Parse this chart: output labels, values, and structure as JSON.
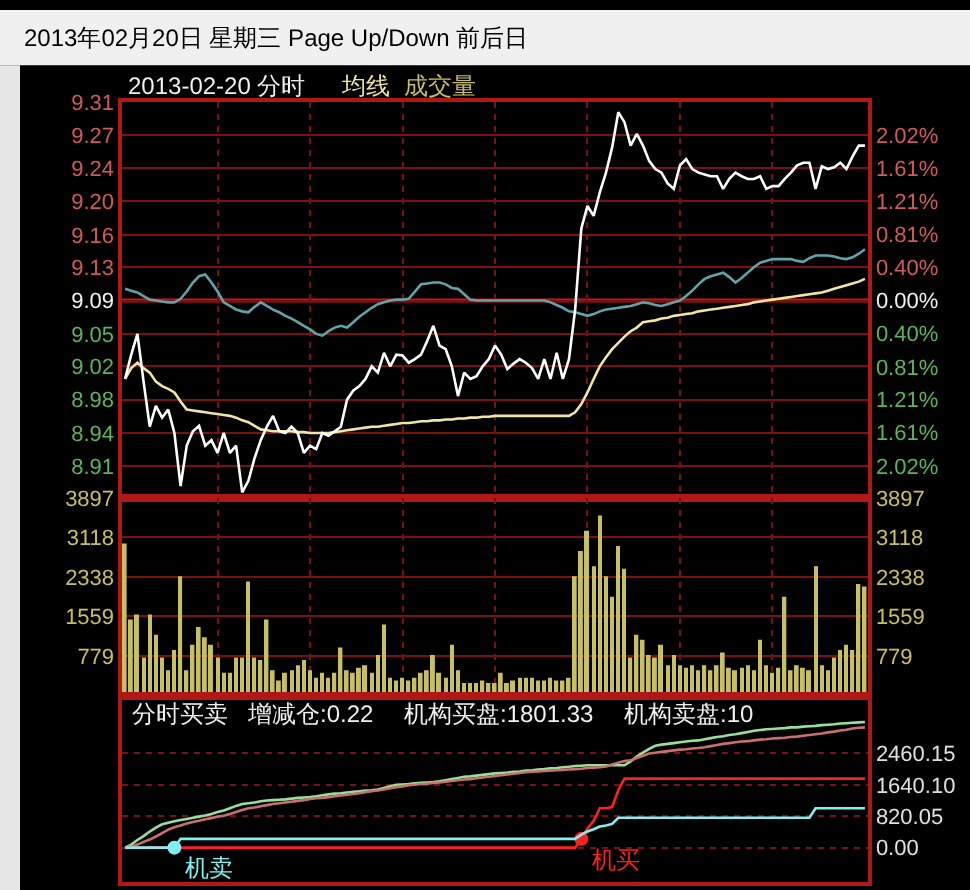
{
  "chart_data": [
    {
      "type": "line",
      "title": "2013年02月20日 星期三 Page Up/Down 前后日",
      "subtitle": "2013-02-20 分时",
      "categories": [
        null,
        null,
        null,
        null,
        null,
        null,
        null,
        null,
        null,
        null,
        null,
        null,
        null,
        null,
        null,
        null,
        null,
        null,
        null,
        null,
        null,
        null,
        null,
        null,
        null,
        null,
        null,
        null,
        null,
        null,
        null,
        null,
        null,
        null,
        null,
        null,
        null,
        null,
        null,
        null,
        null,
        null,
        null,
        null,
        null,
        null,
        null,
        null,
        null,
        null,
        null,
        null,
        null,
        null,
        null,
        null,
        null,
        null,
        null,
        null,
        null,
        null,
        null,
        null,
        null,
        null,
        null,
        null,
        null,
        null,
        null,
        null,
        null,
        null,
        null,
        null,
        null,
        null,
        null,
        null,
        null,
        null,
        null,
        null,
        null,
        null,
        null,
        null,
        null,
        null,
        null,
        null,
        null,
        null,
        null,
        null,
        null,
        null,
        null,
        null,
        null,
        null,
        null,
        null,
        null,
        null,
        null,
        null,
        null,
        null,
        null,
        null,
        null,
        null,
        null,
        null,
        null,
        null,
        null,
        null,
        null
      ],
      "series": [
        {
          "color": "#5fa3ab",
          "values": [
            9.103,
            9.101,
            9.099,
            9.095,
            9.091,
            9.09,
            9.089,
            9.088,
            9.088,
            9.092,
            9.1,
            9.11,
            9.117,
            9.119,
            9.11,
            9.1,
            9.088,
            9.084,
            9.08,
            9.078,
            9.077,
            9.083,
            9.088,
            9.084,
            9.08,
            9.077,
            9.073,
            9.07,
            9.066,
            9.062,
            9.058,
            9.053,
            9.051,
            9.056,
            9.06,
            9.062,
            9.06,
            9.066,
            9.072,
            9.077,
            9.082,
            9.086,
            9.088,
            9.09,
            9.091,
            9.091,
            9.092,
            9.1,
            9.108,
            9.109,
            9.11,
            9.11,
            9.108,
            9.104,
            9.103,
            9.097,
            9.091,
            9.09,
            9.09,
            9.09,
            9.09,
            9.09,
            9.09,
            9.09,
            9.09,
            9.09,
            9.09,
            9.09,
            9.09,
            9.088,
            9.085,
            9.082,
            9.078,
            9.077,
            9.075,
            9.073,
            9.075,
            9.078,
            9.08,
            9.081,
            9.082,
            9.083,
            9.084,
            9.086,
            9.088,
            9.087,
            9.085,
            9.084,
            9.086,
            9.088,
            9.09,
            9.095,
            9.101,
            9.108,
            9.114,
            9.117,
            9.119,
            9.121,
            9.116,
            9.11,
            9.115,
            9.121,
            9.127,
            9.132,
            9.134,
            9.136,
            9.136,
            9.136,
            9.136,
            9.134,
            9.133,
            9.137,
            9.14,
            9.14,
            9.14,
            9.139,
            9.137,
            9.136,
            9.138,
            9.142,
            9.147
          ]
        },
        {
          "name": "均线",
          "color": "#f0e6a0",
          "values": [
            9.003,
            9.015,
            9.021,
            9.015,
            9.01,
            9.0,
            8.995,
            8.992,
            8.988,
            8.978,
            8.969,
            8.968,
            8.967,
            8.966,
            8.965,
            8.964,
            8.963,
            8.962,
            8.96,
            8.957,
            8.955,
            8.951,
            8.947,
            8.946,
            8.945,
            8.945,
            8.945,
            8.945,
            8.944,
            8.944,
            8.943,
            8.943,
            8.943,
            8.943,
            8.944,
            8.945,
            8.946,
            8.947,
            8.948,
            8.949,
            8.95,
            8.95,
            8.951,
            8.952,
            8.953,
            8.954,
            8.954,
            8.955,
            8.956,
            8.956,
            8.957,
            8.957,
            8.958,
            8.958,
            8.959,
            8.959,
            8.96,
            8.96,
            8.961,
            8.961,
            8.962,
            8.962,
            8.962,
            8.962,
            8.962,
            8.962,
            8.962,
            8.962,
            8.962,
            8.962,
            8.962,
            8.962,
            8.962,
            8.966,
            8.975,
            8.988,
            9.003,
            9.017,
            9.027,
            9.036,
            9.043,
            9.05,
            9.056,
            9.06,
            9.066,
            9.067,
            9.068,
            9.07,
            9.071,
            9.073,
            9.074,
            9.075,
            9.076,
            9.078,
            9.079,
            9.08,
            9.081,
            9.082,
            9.083,
            9.084,
            9.085,
            9.086,
            9.088,
            9.089,
            9.09,
            9.091,
            9.092,
            9.093,
            9.094,
            9.095,
            9.096,
            9.097,
            9.098,
            9.099,
            9.101,
            9.103,
            9.105,
            9.107,
            9.109,
            9.111,
            9.114
          ]
        },
        {
          "color": "#ffffff",
          "values": [
            9.003,
            9.03,
            9.053,
            9.0,
            8.95,
            8.973,
            8.96,
            8.969,
            8.943,
            8.884,
            8.929,
            8.945,
            8.951,
            8.929,
            8.935,
            8.921,
            8.943,
            8.921,
            8.929,
            8.877,
            8.89,
            8.915,
            8.935,
            8.95,
            8.962,
            8.945,
            8.943,
            8.95,
            8.943,
            8.921,
            8.929,
            8.925,
            8.943,
            8.94,
            8.945,
            8.95,
            8.98,
            8.99,
            8.995,
            9.003,
            9.017,
            9.01,
            9.032,
            9.017,
            9.03,
            9.029,
            9.021,
            9.025,
            9.03,
            9.045,
            9.062,
            9.04,
            9.036,
            9.017,
            8.984,
            9.01,
            9.003,
            9.006,
            9.017,
            9.025,
            9.04,
            9.03,
            9.014,
            9.02,
            9.025,
            9.021,
            9.015,
            9.003,
            9.025,
            9.003,
            9.032,
            9.003,
            9.025,
            9.08,
            9.17,
            9.195,
            9.184,
            9.21,
            9.232,
            9.26,
            9.299,
            9.288,
            9.262,
            9.275,
            9.262,
            9.245,
            9.236,
            9.232,
            9.22,
            9.214,
            9.24,
            9.247,
            9.236,
            9.232,
            9.23,
            9.228,
            9.228,
            9.214,
            9.225,
            9.232,
            9.228,
            9.225,
            9.225,
            9.228,
            9.214,
            9.217,
            9.217,
            9.225,
            9.232,
            9.24,
            9.243,
            9.243,
            9.214,
            9.239,
            9.236,
            9.238,
            9.243,
            9.236,
            9.25,
            9.262,
            9.262
          ]
        }
      ],
      "ylim": [
        8.871,
        9.31
      ],
      "yticks": [
        {
          "value": 9.31,
          "label": "9.31"
        },
        {
          "value": 9.274,
          "label": "9.27"
        },
        {
          "value": 9.237,
          "label": "9.24"
        },
        {
          "value": 9.2,
          "label": "9.20"
        },
        {
          "value": 9.163,
          "label": "9.16"
        },
        {
          "value": 9.127,
          "label": "9.13"
        },
        9.09,
        {
          "value": 9.053,
          "label": "9.05"
        },
        {
          "value": 9.017,
          "label": "9.02"
        },
        {
          "value": 8.98,
          "label": "8.98"
        },
        {
          "value": 8.943,
          "label": "8.94"
        },
        {
          "value": 8.906,
          "label": "8.91"
        }
      ],
      "y2lim": [
        -2.41,
        2.42
      ],
      "y2ticks": [
        {
          "value": 2.02,
          "label": "2.02%"
        },
        {
          "value": 1.61,
          "label": "1.61%"
        },
        {
          "value": 1.21,
          "label": "1.21%"
        },
        {
          "value": 0.81,
          "label": "0.81%"
        },
        {
          "value": 0.4,
          "label": "0.40%"
        },
        {
          "value": 0,
          "label": "0.00%"
        },
        {
          "value": -0.4,
          "label": "0.40%"
        },
        {
          "value": -0.81,
          "label": "0.81%"
        },
        {
          "value": -1.21,
          "label": "1.21%"
        },
        {
          "value": -1.61,
          "label": "1.61%"
        },
        {
          "value": -2.02,
          "label": "2.02%"
        }
      ],
      "ref_lines": [
        {
          "axis": "y",
          "value": 9.09,
          "color": "#d01414"
        }
      ],
      "grid": true,
      "legend": "top left"
    },
    {
      "type": "bar",
      "categories": [
        null,
        null,
        null,
        null,
        null,
        null,
        null,
        null,
        null,
        null,
        null,
        null,
        null,
        null,
        null,
        null,
        null,
        null,
        null,
        null,
        null,
        null,
        null,
        null,
        null,
        null,
        null,
        null,
        null,
        null,
        null,
        null,
        null,
        null,
        null,
        null,
        null,
        null,
        null,
        null,
        null,
        null,
        null,
        null,
        null,
        null,
        null,
        null,
        null,
        null,
        null,
        null,
        null,
        null,
        null,
        null,
        null,
        null,
        null,
        null,
        null,
        null,
        null,
        null,
        null,
        null,
        null,
        null,
        null,
        null,
        null,
        null,
        null,
        null,
        null,
        null,
        null,
        null,
        null,
        null,
        null,
        null,
        null,
        null,
        null,
        null,
        null,
        null,
        null,
        null,
        null,
        null,
        null,
        null,
        null,
        null,
        null,
        null,
        null,
        null,
        null,
        null,
        null,
        null,
        null,
        null,
        null,
        null,
        null,
        null,
        null,
        null,
        null,
        null,
        null,
        null,
        null,
        null,
        null,
        null,
        null
      ],
      "series": [
        {
          "name": "成交量",
          "color": "#c8c060",
          "values": [
            3000,
            1500,
            1600,
            750,
            1600,
            1200,
            750,
            500,
            900,
            2350,
            500,
            1000,
            1350,
            1150,
            1000,
            750,
            450,
            450,
            750,
            750,
            2250,
            750,
            700,
            1500,
            500,
            300,
            450,
            500,
            600,
            700,
            500,
            350,
            450,
            350,
            450,
            950,
            500,
            450,
            550,
            600,
            450,
            800,
            1400,
            350,
            300,
            350,
            300,
            350,
            450,
            500,
            800,
            450,
            350,
            1000,
            500,
            250,
            250,
            250,
            300,
            250,
            250,
            450,
            250,
            300,
            350,
            350,
            350,
            300,
            300,
            350,
            300,
            300,
            350,
            2350,
            2850,
            3250,
            2550,
            3550,
            2350,
            1950,
            2950,
            2500,
            750,
            1200,
            1100,
            800,
            750,
            1000,
            600,
            800,
            600,
            550,
            600,
            500,
            600,
            500,
            600,
            850,
            550,
            500,
            550,
            600,
            500,
            1100,
            600,
            450,
            550,
            1950,
            500,
            600,
            550,
            500,
            2550,
            600,
            500,
            750,
            900,
            1000,
            900,
            2200,
            2150
          ]
        }
      ],
      "ylim": [
        0,
        3897
      ],
      "yticks": [
        779,
        1559,
        2338,
        3118,
        3897
      ],
      "y2lim": [
        0,
        3897
      ],
      "y2ticks": [
        779,
        1559,
        2338,
        3118,
        3897
      ],
      "grid": true,
      "legend": "top left"
    },
    {
      "type": "line",
      "title": "分时买卖",
      "annotations": [
        "增减仓:0.22",
        "机构买盘:1801.33",
        "机构卖盘:10"
      ],
      "categories": [
        null,
        null,
        null,
        null,
        null,
        null,
        null,
        null,
        null,
        null,
        null,
        null,
        null,
        null,
        null,
        null,
        null,
        null,
        null,
        null,
        null,
        null,
        null,
        null,
        null,
        null,
        null,
        null,
        null,
        null,
        null,
        null,
        null,
        null,
        null,
        null,
        null,
        null,
        null,
        null,
        null,
        null,
        null,
        null,
        null,
        null,
        null,
        null,
        null,
        null,
        null,
        null,
        null,
        null,
        null,
        null,
        null,
        null,
        null,
        null,
        null,
        null,
        null,
        null,
        null,
        null,
        null,
        null,
        null,
        null,
        null,
        null,
        null,
        null,
        null,
        null,
        null,
        null,
        null,
        null,
        null,
        null,
        null,
        null,
        null,
        null,
        null,
        null,
        null,
        null,
        null,
        null,
        null,
        null,
        null,
        null,
        null,
        null,
        null,
        null,
        null,
        null,
        null,
        null,
        null,
        null,
        null,
        null,
        null,
        null,
        null,
        null,
        null,
        null,
        null,
        null,
        null,
        null,
        null,
        null,
        null
      ],
      "series": [
        {
          "color": "#98e098",
          "values": [
            0,
            80,
            200,
            300,
            420,
            520,
            610,
            650,
            690,
            720,
            750,
            780,
            810,
            840,
            880,
            930,
            970,
            1030,
            1090,
            1140,
            1160,
            1180,
            1210,
            1230,
            1240,
            1250,
            1260,
            1280,
            1300,
            1310,
            1320,
            1340,
            1370,
            1390,
            1410,
            1420,
            1440,
            1460,
            1470,
            1490,
            1500,
            1520,
            1560,
            1600,
            1640,
            1650,
            1660,
            1680,
            1690,
            1700,
            1710,
            1730,
            1760,
            1790,
            1820,
            1850,
            1860,
            1880,
            1900,
            1920,
            1940,
            1950,
            1960,
            1980,
            1990,
            2010,
            2020,
            2040,
            2050,
            2070,
            2080,
            2100,
            2110,
            2130,
            2140,
            2150,
            2150,
            2150,
            2150,
            2150,
            2150,
            2150,
            2250,
            2380,
            2480,
            2580,
            2660,
            2690,
            2710,
            2730,
            2750,
            2770,
            2790,
            2800,
            2830,
            2860,
            2890,
            2910,
            2940,
            2960,
            2990,
            3020,
            3050,
            3070,
            3090,
            3100,
            3110,
            3120,
            3140,
            3140,
            3160,
            3170,
            3180,
            3200,
            3210,
            3220,
            3240,
            3250,
            3260,
            3270,
            3280
          ]
        },
        {
          "color": "#c87070",
          "values": [
            0,
            20,
            80,
            150,
            210,
            290,
            380,
            470,
            530,
            580,
            630,
            670,
            700,
            740,
            770,
            810,
            830,
            880,
            930,
            980,
            1030,
            1050,
            1080,
            1110,
            1140,
            1160,
            1180,
            1200,
            1220,
            1240,
            1270,
            1290,
            1300,
            1320,
            1340,
            1360,
            1380,
            1400,
            1420,
            1450,
            1470,
            1490,
            1520,
            1550,
            1580,
            1600,
            1630,
            1640,
            1660,
            1670,
            1690,
            1700,
            1720,
            1740,
            1760,
            1780,
            1790,
            1810,
            1830,
            1850,
            1870,
            1890,
            1910,
            1930,
            1950,
            1970,
            1980,
            1990,
            2000,
            2010,
            2020,
            2030,
            2040,
            2050,
            2060,
            2080,
            2090,
            2100,
            2120,
            2170,
            2220,
            2260,
            2280,
            2340,
            2400,
            2460,
            2480,
            2500,
            2520,
            2540,
            2560,
            2570,
            2590,
            2600,
            2620,
            2650,
            2680,
            2710,
            2730,
            2750,
            2770,
            2780,
            2800,
            2820,
            2830,
            2850,
            2860,
            2870,
            2890,
            2900,
            2920,
            2940,
            2960,
            2980,
            3010,
            3030,
            3060,
            3080,
            3110,
            3130,
            3140
          ]
        },
        {
          "color": "#ff2020",
          "values": [
            0,
            0,
            0,
            0,
            0,
            0,
            0,
            0,
            0,
            0,
            0,
            0,
            0,
            0,
            0,
            0,
            0,
            0,
            0,
            0,
            0,
            0,
            0,
            0,
            0,
            0,
            0,
            0,
            0,
            0,
            0,
            0,
            0,
            0,
            0,
            0,
            0,
            0,
            0,
            0,
            0,
            0,
            0,
            0,
            0,
            0,
            0,
            0,
            0,
            0,
            0,
            0,
            0,
            0,
            0,
            0,
            0,
            0,
            0,
            0,
            0,
            0,
            0,
            0,
            0,
            0,
            0,
            0,
            0,
            0,
            0,
            0,
            0,
            0,
            230,
            500,
            700,
            1030,
            1030,
            1060,
            1500,
            1801.33,
            1801.33,
            1801.33,
            1801.33,
            1801.33,
            1801.33,
            1801.33,
            1801.33,
            1801.33,
            1801.33,
            1801.33,
            1801.33,
            1801.33,
            1801.33,
            1801.33,
            1801.33,
            1801.33,
            1801.33,
            1801.33,
            1801.33,
            1801.33,
            1801.33,
            1801.33,
            1801.33,
            1801.33,
            1801.33,
            1801.33,
            1801.33,
            1801.33,
            1801.33,
            1801.33,
            1801.33,
            1801.33,
            1801.33,
            1801.33,
            1801.33,
            1801.33,
            1801.33,
            1801.33,
            1801.33
          ],
          "value_labels": [
            null,
            null,
            null,
            null,
            null,
            null,
            null,
            null,
            null,
            null,
            null,
            null,
            null,
            null,
            null,
            null,
            null,
            null,
            null,
            null,
            null,
            null,
            null,
            null,
            null,
            null,
            null,
            null,
            null,
            null,
            null,
            null,
            null,
            null,
            null,
            null,
            null,
            null,
            null,
            null,
            null,
            null,
            null,
            null,
            null,
            null,
            null,
            null,
            null,
            null,
            null,
            null,
            null,
            null,
            null,
            null,
            null,
            null,
            null,
            null,
            null,
            null,
            null,
            null,
            null,
            null,
            null,
            null,
            null,
            null,
            null,
            null,
            null,
            null,
            "机买",
            null,
            null,
            null,
            null,
            null,
            null,
            null,
            null,
            null,
            null,
            null,
            null,
            null,
            null,
            null,
            null,
            null,
            null,
            null,
            null,
            null,
            null,
            null,
            null,
            null,
            null,
            null,
            null,
            null,
            null,
            null,
            null,
            null,
            null,
            null,
            null,
            null,
            null,
            null,
            null,
            null,
            null,
            null,
            null,
            null,
            null
          ]
        },
        {
          "color": "#80f0f0",
          "values": [
            0,
            0,
            0,
            0,
            0,
            0,
            0,
            0,
            0,
            230,
            230,
            230,
            230,
            230,
            230,
            230,
            230,
            230,
            230,
            230,
            230,
            230,
            230,
            230,
            230,
            230,
            230,
            230,
            230,
            230,
            230,
            230,
            230,
            230,
            230,
            230,
            230,
            230,
            230,
            230,
            230,
            230,
            230,
            230,
            230,
            230,
            230,
            230,
            230,
            230,
            230,
            230,
            230,
            230,
            230,
            230,
            230,
            230,
            230,
            230,
            230,
            230,
            230,
            230,
            230,
            230,
            230,
            230,
            230,
            230,
            230,
            230,
            230,
            230,
            340,
            420,
            480,
            550,
            580,
            620,
            780,
            780,
            780,
            780,
            780,
            780,
            780,
            780,
            780,
            780,
            780,
            780,
            780,
            780,
            780,
            780,
            780,
            780,
            780,
            780,
            780,
            780,
            780,
            780,
            780,
            780,
            780,
            780,
            780,
            780,
            780,
            780,
            1030,
            1030,
            1030,
            1030,
            1030,
            1030,
            1030,
            1030,
            1030
          ],
          "value_labels": [
            null,
            null,
            null,
            null,
            null,
            null,
            null,
            null,
            "机卖",
            null,
            null,
            null,
            null,
            null,
            null,
            null,
            null,
            null,
            null,
            null,
            null,
            null,
            null,
            null,
            null,
            null,
            null,
            null,
            null,
            null,
            null,
            null,
            null,
            null,
            null,
            null,
            null,
            null,
            null,
            null,
            null,
            null,
            null,
            null,
            null,
            null,
            null,
            null,
            null,
            null,
            null,
            null,
            null,
            null,
            null,
            null,
            null,
            null,
            null,
            null,
            null,
            null,
            null,
            null,
            null,
            null,
            null,
            null,
            null,
            null,
            null,
            null,
            null,
            null,
            null,
            null,
            null,
            null,
            null,
            null,
            null,
            null,
            null,
            null,
            null,
            null,
            null,
            null,
            null,
            null,
            null,
            null,
            null,
            null,
            null,
            null,
            null,
            null,
            null,
            null,
            null,
            null,
            null,
            null,
            null,
            null,
            null,
            null,
            null,
            null,
            null,
            null,
            null,
            null,
            null,
            null,
            null,
            null,
            null,
            null,
            null
          ]
        }
      ],
      "ylim": [
        -900,
        3970
      ],
      "yticks": [
        {
          "value": 0,
          "label": "0.00"
        },
        820.05,
        {
          "value": 1640.1,
          "label": "1640.10"
        },
        2460.15
      ],
      "grid": "y"
    }
  ]
}
